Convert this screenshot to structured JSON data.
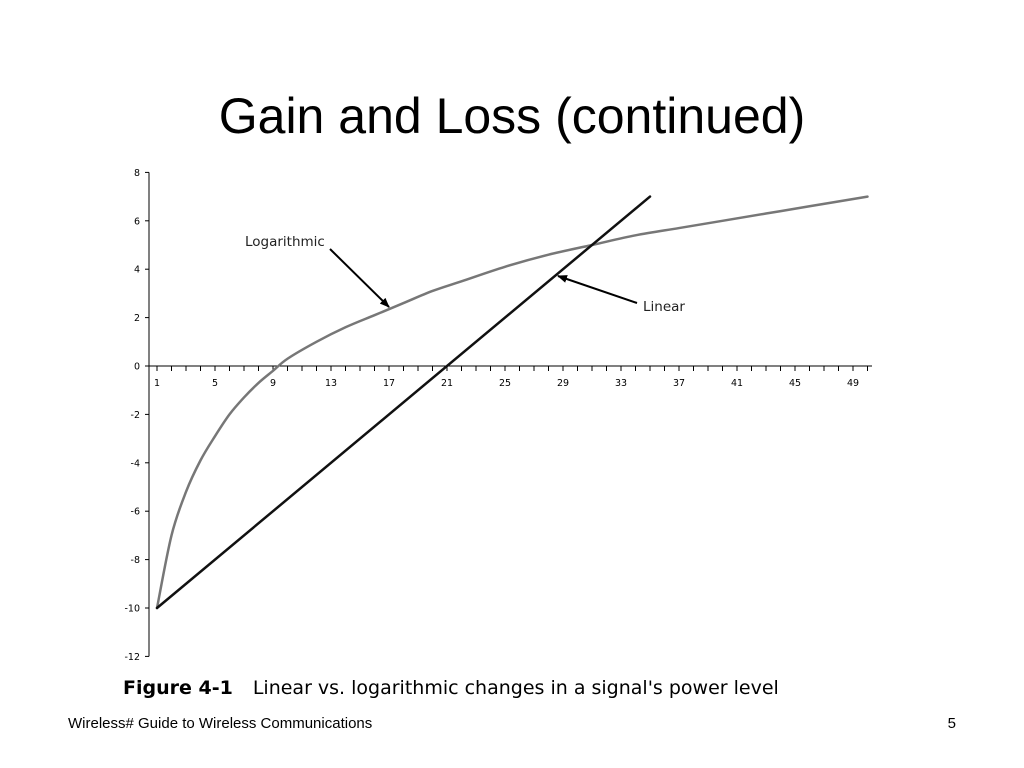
{
  "slide": {
    "title": "Gain and Loss (continued)",
    "footer_left": "Wireless# Guide to Wireless Communications",
    "footer_right": "5"
  },
  "chart_data": {
    "type": "line",
    "title": "",
    "xlabel": "",
    "ylabel": "",
    "x_ticks": [
      1,
      5,
      9,
      13,
      17,
      21,
      25,
      29,
      33,
      37,
      41,
      45,
      49
    ],
    "y_ticks": [
      8,
      6,
      4,
      2,
      0,
      -2,
      -4,
      -6,
      -8,
      -10,
      -12
    ],
    "xlim": [
      1,
      50
    ],
    "ylim": [
      -12,
      8
    ],
    "grid": false,
    "series": [
      {
        "name": "Logarithmic",
        "color": "#777777",
        "x": [
          1,
          2,
          3,
          4,
          5,
          6,
          7,
          8,
          9,
          10,
          12,
          14,
          16,
          18,
          20,
          22,
          25,
          28,
          31,
          34,
          37,
          40,
          43,
          46,
          50
        ],
        "y": [
          -10,
          -7,
          -5.2,
          -3.9,
          -2.9,
          -2.0,
          -1.3,
          -0.7,
          -0.2,
          0.3,
          1.0,
          1.6,
          2.1,
          2.6,
          3.1,
          3.5,
          4.1,
          4.6,
          5.0,
          5.4,
          5.7,
          6.0,
          6.3,
          6.6,
          7.0
        ]
      },
      {
        "name": "Linear",
        "color": "#111111",
        "x": [
          1,
          35
        ],
        "y": [
          -10,
          7
        ]
      }
    ],
    "annotations": [
      {
        "text": "Logarithmic"
      },
      {
        "text": "Linear"
      }
    ],
    "caption_label": "Figure 4-1",
    "caption_text": "Linear vs. logarithmic changes in a signal's power level"
  }
}
